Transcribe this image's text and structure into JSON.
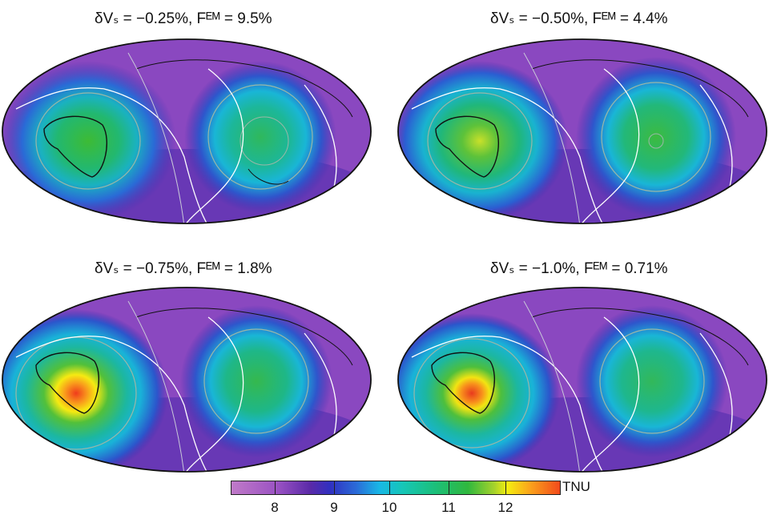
{
  "panels": [
    {
      "title": "δVₛ = −0.25%, Fᴱᴹ = 9.5%",
      "dvs": "−0.25%",
      "fem": "9.5%"
    },
    {
      "title": "δVₛ = −0.50%, Fᴱᴹ = 4.4%",
      "dvs": "−0.50%",
      "fem": "4.4%"
    },
    {
      "title": "δVₛ = −0.75%, Fᴱᴹ = 1.8%",
      "dvs": "−0.75%",
      "fem": "1.8%"
    },
    {
      "title": "δVₛ = −1.0%, Fᴱᴹ = 0.71%",
      "dvs": "−1.0%",
      "fem": "0.71%"
    }
  ],
  "colorbar": {
    "unit": "TNU",
    "ticks": [
      "8",
      "9",
      "10",
      "11",
      "12"
    ],
    "range": [
      7.4,
      12.9
    ],
    "colors": [
      "#c07ac8",
      "#5a2aa8",
      "#2b6bd8",
      "#18b7e6",
      "#1cbf7a",
      "#30b83e",
      "#f5ee10",
      "#f24a1c"
    ]
  }
}
